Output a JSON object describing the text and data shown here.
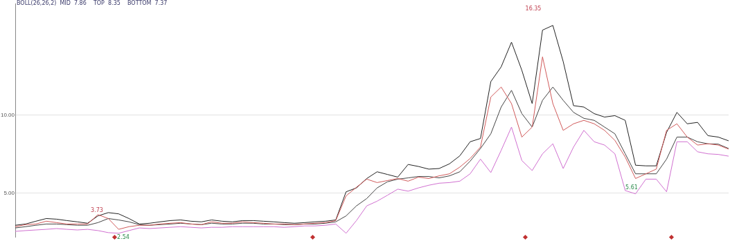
{
  "chart_data": {
    "type": "line",
    "title": "BOLL(26,26,2)  MID  7.86    TOP  8.35    BOTTOM  7.37",
    "categories": [
      null,
      null,
      null,
      null,
      null,
      null,
      null,
      null,
      null,
      null,
      null,
      null,
      null,
      null,
      null,
      null,
      null,
      null,
      null,
      null,
      null,
      null,
      null,
      null,
      null,
      null,
      null,
      null,
      null,
      null,
      null,
      null,
      null,
      null,
      null,
      null,
      null,
      null,
      null,
      null,
      null,
      null,
      null,
      null,
      null,
      null,
      null,
      null,
      null,
      null,
      null,
      null,
      null,
      null,
      null,
      null,
      null,
      null,
      null,
      null,
      null,
      null,
      null,
      null,
      null,
      null,
      null,
      null,
      null,
      null
    ],
    "ylim": [
      2.2,
      17.1
    ],
    "yticks": [
      {
        "value": 5,
        "label": "5.00"
      },
      {
        "value": 10,
        "label": "10.00"
      }
    ],
    "tick_labels": "y",
    "grid": "y",
    "marker": "none",
    "series": [
      {
        "color": "#d05a5a",
        "values": [
          2.86,
          2.99,
          3.03,
          3.21,
          3.12,
          3.03,
          3.03,
          3.03,
          3.63,
          3.38,
          2.69,
          2.86,
          2.95,
          2.95,
          3.03,
          3.08,
          3.12,
          3.03,
          2.99,
          3.17,
          3.08,
          3.08,
          3.17,
          3.12,
          3.08,
          3.03,
          3.03,
          2.99,
          3.03,
          3.08,
          3.12,
          3.25,
          4.83,
          5.38,
          5.9,
          5.68,
          5.81,
          5.94,
          5.77,
          6.03,
          5.94,
          6.11,
          6.24,
          6.67,
          7.22,
          7.95,
          11.15,
          11.79,
          10.73,
          8.59,
          9.23,
          13.72,
          10.73,
          9.02,
          9.44,
          9.66,
          9.44,
          9.02,
          8.38,
          7.31,
          5.94,
          6.24,
          6.54,
          9.02,
          9.44,
          8.59,
          8.08,
          8.16,
          8.08,
          7.82
        ]
      },
      {
        "color": "#222222",
        "values": [
          2.95,
          3.03,
          3.21,
          3.38,
          3.34,
          3.25,
          3.17,
          3.08,
          3.55,
          3.76,
          3.68,
          3.38,
          3.03,
          3.08,
          3.17,
          3.25,
          3.29,
          3.21,
          3.17,
          3.29,
          3.21,
          3.17,
          3.25,
          3.25,
          3.21,
          3.17,
          3.12,
          3.08,
          3.12,
          3.17,
          3.21,
          3.29,
          5.09,
          5.34,
          5.94,
          6.37,
          6.2,
          6.03,
          6.84,
          6.71,
          6.54,
          6.58,
          6.88,
          7.39,
          8.29,
          8.5,
          12.14,
          13.08,
          14.66,
          12.86,
          10.73,
          15.43,
          15.73,
          13.42,
          10.6,
          10.51,
          10.09,
          9.87,
          9.96,
          9.66,
          6.79,
          6.75,
          6.75,
          8.89,
          10.17,
          9.44,
          9.53,
          8.68,
          8.59,
          8.35
        ]
      },
      {
        "color": "#444444",
        "values": [
          2.78,
          2.86,
          2.95,
          3.03,
          3.03,
          2.99,
          2.95,
          2.95,
          3.12,
          3.38,
          3.29,
          3.17,
          2.99,
          2.95,
          2.99,
          3.03,
          3.08,
          3.03,
          2.99,
          3.08,
          3.03,
          3.03,
          3.08,
          3.08,
          3.03,
          3.03,
          2.99,
          2.99,
          3.03,
          3.03,
          3.08,
          3.17,
          3.55,
          4.19,
          4.66,
          5.34,
          5.73,
          5.9,
          5.98,
          6.07,
          6.07,
          5.98,
          6.11,
          6.37,
          7.05,
          7.86,
          8.8,
          10.51,
          11.58,
          10.09,
          9.23,
          10.94,
          11.79,
          10.94,
          10.17,
          9.79,
          9.66,
          9.23,
          8.8,
          7.52,
          6.24,
          6.24,
          6.24,
          7.18,
          8.59,
          8.59,
          8.29,
          8.16,
          8.14,
          7.86
        ]
      },
      {
        "color": "#d070d0",
        "values": [
          2.56,
          2.61,
          2.65,
          2.69,
          2.74,
          2.69,
          2.65,
          2.69,
          2.61,
          2.48,
          2.44,
          2.61,
          2.78,
          2.74,
          2.78,
          2.82,
          2.86,
          2.82,
          2.78,
          2.82,
          2.82,
          2.86,
          2.86,
          2.86,
          2.86,
          2.86,
          2.82,
          2.86,
          2.91,
          2.91,
          2.95,
          3.03,
          2.44,
          3.25,
          4.19,
          4.49,
          4.87,
          5.26,
          5.13,
          5.34,
          5.51,
          5.64,
          5.68,
          5.77,
          6.24,
          7.18,
          6.32,
          7.74,
          9.23,
          7.09,
          6.45,
          7.52,
          8.16,
          6.58,
          7.95,
          9.02,
          8.29,
          8.08,
          7.52,
          5.17,
          4.96,
          5.9,
          5.9,
          5.09,
          8.29,
          8.29,
          7.65,
          7.52,
          7.48,
          7.37
        ]
      }
    ],
    "annotations": [
      "3.73",
      "2.54",
      "16.35",
      "5.61"
    ]
  }
}
